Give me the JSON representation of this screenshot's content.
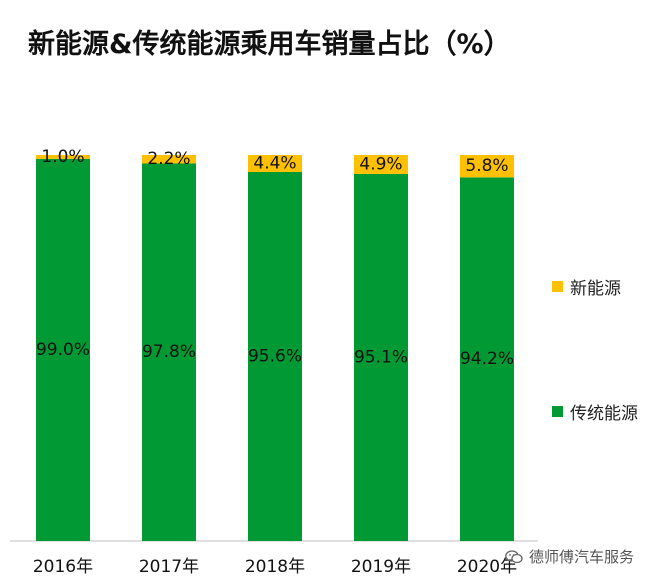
{
  "chart_data": {
    "type": "bar",
    "stacked": true,
    "percent": true,
    "title": "新能源&传统能源乘用车销量占比（%）",
    "categories": [
      "2016年",
      "2017年",
      "2018年",
      "2019年",
      "2020年"
    ],
    "series": [
      {
        "name": "传统能源",
        "color": "#009933",
        "values": [
          99.0,
          97.8,
          95.6,
          95.1,
          94.2
        ],
        "labels": [
          "99.0%",
          "97.8%",
          "95.6%",
          "95.1%",
          "94.2%"
        ]
      },
      {
        "name": "新能源",
        "color": "#FFC000",
        "values": [
          1.0,
          2.2,
          4.4,
          4.9,
          5.8
        ],
        "labels": [
          "1.0%",
          "2.2%",
          "4.4%",
          "4.9%",
          "5.8%"
        ]
      }
    ],
    "ylim": [
      0,
      100
    ],
    "xlabel": "",
    "ylabel": "",
    "grid": false,
    "legend": "right"
  },
  "legend": {
    "new_energy": "新能源",
    "traditional": "传统能源"
  },
  "watermark": {
    "text": "德师傅汽车服务",
    "icon": "wechat-icon"
  }
}
